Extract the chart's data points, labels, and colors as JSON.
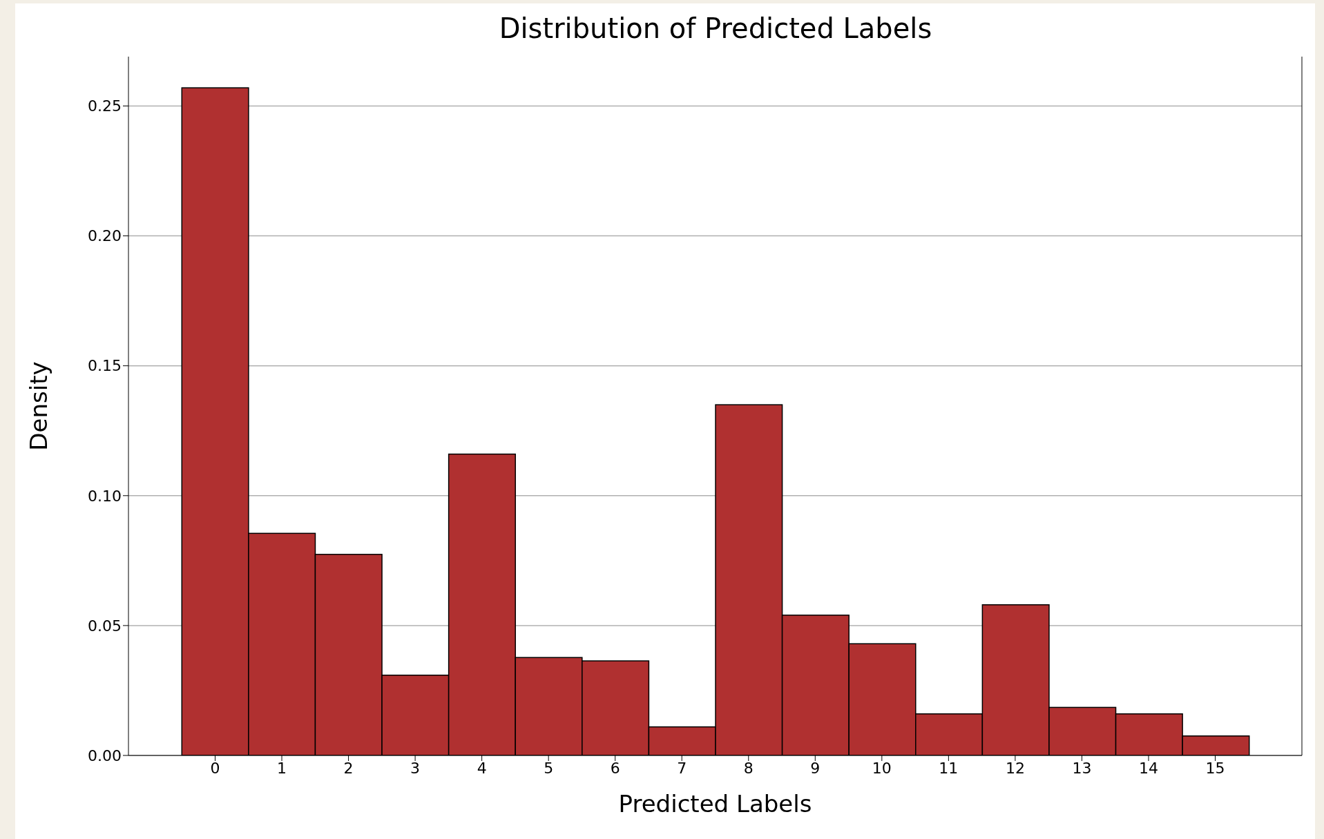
{
  "chart_data": {
    "type": "histogram",
    "title": "Distribution of Predicted Labels",
    "xlabel": "Predicted Labels",
    "ylabel": "Density",
    "bins": [
      -0.5,
      0.5,
      1.5,
      2.5,
      3.5,
      4.5,
      5.5,
      6.5,
      7.5,
      8.5,
      9.5,
      10.5,
      11.5,
      12.5,
      13.5,
      14.5,
      15.5
    ],
    "values": [
      0.257,
      0.0855,
      0.0774,
      0.0309,
      0.116,
      0.0377,
      0.0364,
      0.011,
      0.135,
      0.054,
      0.043,
      0.016,
      0.058,
      0.0185,
      0.016,
      0.0075
    ],
    "color": "#b03030",
    "xlim": [
      -1.3,
      16.3
    ],
    "xticks": [
      0,
      1,
      2,
      3,
      4,
      5,
      6,
      7,
      8,
      9,
      10,
      11,
      12,
      13,
      14,
      15
    ],
    "ylim": [
      0,
      0.269
    ],
    "yticks": [
      {
        "value": 0,
        "label": "0.00"
      },
      {
        "value": 0.05,
        "label": "0.05"
      },
      {
        "value": 0.1,
        "label": "0.10"
      },
      {
        "value": 0.15,
        "label": "0.15"
      },
      {
        "value": 0.2,
        "label": "0.20"
      },
      {
        "value": 0.25,
        "label": "0.25"
      }
    ],
    "grid": "y"
  }
}
